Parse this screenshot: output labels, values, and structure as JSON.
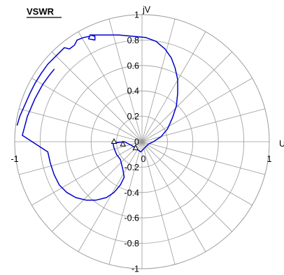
{
  "chart_data": {
    "type": "line",
    "title": "VSWR",
    "xlabel": "U",
    "ylabel": "jV",
    "xlim": [
      -1,
      1
    ],
    "ylim": [
      -1,
      1
    ],
    "grid": true,
    "grid_style": "polar",
    "y_tick_labels": [
      "-1",
      "-0.8",
      "-0.6",
      "-0.4",
      "-0.2",
      "0",
      "0.2",
      "0.4",
      "0.6",
      "0.8",
      "1"
    ],
    "x_tick_labels": [
      "-1",
      "0",
      "1"
    ],
    "series": [
      {
        "color": "#0000cc",
        "points": [
          [
            -0.98,
            0.13
          ],
          [
            -0.96,
            0.2
          ],
          [
            -0.92,
            0.29
          ],
          [
            -0.88,
            0.38
          ],
          [
            -0.84,
            0.46
          ],
          [
            -0.79,
            0.54
          ],
          [
            -0.74,
            0.61
          ],
          [
            -0.67,
            0.68
          ],
          [
            -0.61,
            0.74
          ],
          [
            -0.57,
            0.73
          ],
          [
            -0.53,
            0.76
          ],
          [
            -0.51,
            0.8
          ],
          [
            -0.46,
            0.82
          ],
          [
            -0.41,
            0.83
          ],
          [
            -0.42,
            0.81
          ],
          [
            -0.37,
            0.8
          ],
          [
            -0.37,
            0.83
          ],
          [
            -0.41,
            0.84
          ],
          [
            -0.39,
            0.84
          ],
          [
            -0.34,
            0.84
          ],
          [
            -0.27,
            0.84
          ],
          [
            -0.18,
            0.84
          ],
          [
            -0.08,
            0.83
          ],
          [
            0.03,
            0.82
          ],
          [
            0.11,
            0.79
          ],
          [
            0.18,
            0.73
          ],
          [
            0.23,
            0.66
          ],
          [
            0.26,
            0.58
          ],
          [
            0.28,
            0.49
          ],
          [
            0.28,
            0.38
          ],
          [
            0.27,
            0.28
          ],
          [
            0.24,
            0.19
          ],
          [
            0.2,
            0.1
          ],
          [
            0.15,
            0.04
          ],
          [
            0.09,
            0.0
          ],
          [
            0.05,
            -0.02
          ],
          [
            0.02,
            -0.05
          ],
          [
            -0.01,
            -0.08
          ],
          [
            -0.08,
            -0.03
          ],
          [
            -0.14,
            0.0
          ],
          [
            -0.21,
            -0.01
          ],
          [
            -0.23,
            0.0
          ],
          [
            -0.22,
            -0.05
          ],
          [
            -0.2,
            -0.1
          ],
          [
            -0.17,
            -0.14
          ],
          [
            -0.16,
            -0.18
          ],
          [
            -0.15,
            -0.22
          ],
          [
            -0.14,
            -0.28
          ],
          [
            -0.17,
            -0.34
          ],
          [
            -0.22,
            -0.4
          ],
          [
            -0.28,
            -0.44
          ],
          [
            -0.36,
            -0.46
          ],
          [
            -0.44,
            -0.46
          ],
          [
            -0.52,
            -0.44
          ],
          [
            -0.59,
            -0.4
          ],
          [
            -0.65,
            -0.34
          ],
          [
            -0.69,
            -0.26
          ],
          [
            -0.72,
            -0.17
          ],
          [
            -0.74,
            -0.08
          ],
          [
            -0.94,
            0.05
          ],
          [
            -0.9,
            0.2
          ],
          [
            -0.84,
            0.34
          ],
          [
            -0.78,
            0.45
          ],
          [
            -0.73,
            0.52
          ],
          [
            -0.69,
            0.57
          ]
        ],
        "markers": [
          [
            -0.22,
            0.0
          ],
          [
            -0.15,
            -0.02
          ],
          [
            -0.05,
            -0.05
          ]
        ]
      }
    ]
  }
}
